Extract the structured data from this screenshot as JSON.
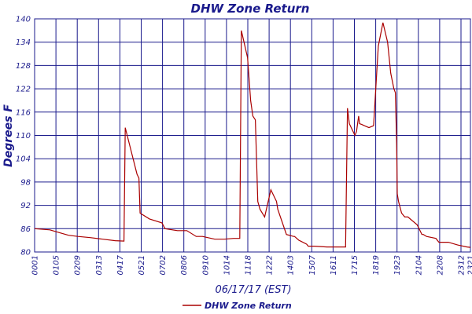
{
  "chart_data": {
    "type": "line",
    "title": "DHW Zone Return",
    "xlabel": "06/17/17 (EST)",
    "ylabel": "Degrees F",
    "ylim": [
      80,
      140
    ],
    "yticks": [
      80,
      86,
      92,
      98,
      104,
      110,
      116,
      122,
      128,
      134,
      140
    ],
    "xlim": [
      "00:01",
      "23:21"
    ],
    "xtick_labels": [
      "0001",
      "0105",
      "0209",
      "0313",
      "0417",
      "0521",
      "0702",
      "0806",
      "0910",
      "1014",
      "1118",
      "1222",
      "1403",
      "1507",
      "1611",
      "1715",
      "1819",
      "1923",
      "2104",
      "2208",
      "2312",
      "2321"
    ],
    "grid": true,
    "legend_position": "bottom",
    "colors": {
      "series": "#aa0000",
      "grid": "#1a1a8c",
      "text": "#1a1a8c"
    },
    "series": [
      {
        "name": "DHW Zone Return",
        "x": [
          "00:01",
          "00:50",
          "01:20",
          "01:50",
          "02:20",
          "03:00",
          "03:40",
          "04:20",
          "04:48",
          "04:52",
          "05:30",
          "05:36",
          "05:40",
          "06:10",
          "06:50",
          "07:00",
          "07:40",
          "07:50",
          "08:10",
          "08:40",
          "09:00",
          "09:40",
          "10:10",
          "10:40",
          "11:00",
          "11:05",
          "11:25",
          "11:35",
          "11:42",
          "11:50",
          "11:58",
          "12:05",
          "12:20",
          "12:40",
          "12:58",
          "13:02",
          "13:30",
          "13:53",
          "13:56",
          "14:10",
          "14:35",
          "14:40",
          "15:00",
          "15:40",
          "16:20",
          "16:40",
          "16:46",
          "16:52",
          "17:10",
          "17:15",
          "17:22",
          "17:25",
          "17:32",
          "17:40",
          "17:55",
          "18:10",
          "18:25",
          "18:40",
          "18:55",
          "19:05",
          "19:15",
          "19:20",
          "19:24",
          "19:26",
          "19:30",
          "19:40",
          "19:50",
          "20:00",
          "20:30",
          "20:45",
          "20:50",
          "21:00",
          "21:30",
          "21:40",
          "22:10",
          "22:40",
          "23:10",
          "23:21"
        ],
        "values": [
          86,
          85.7,
          85,
          84.3,
          84,
          83.7,
          83.3,
          82.9,
          82.8,
          112,
          100,
          99,
          90,
          88.5,
          87.5,
          86,
          85.5,
          85.5,
          85.5,
          84,
          84,
          83.3,
          83.3,
          83.5,
          83.5,
          137,
          130,
          119,
          115,
          114,
          93,
          91,
          89,
          96,
          93,
          91,
          84.5,
          84,
          84,
          83,
          82,
          81.5,
          81.5,
          81.3,
          81.3,
          81.3,
          117,
          113,
          110,
          111,
          115,
          113,
          112.8,
          112.5,
          112,
          112.5,
          133,
          139,
          134,
          126,
          122,
          121,
          108,
          95,
          93,
          90,
          89,
          89,
          87,
          84.5,
          84.5,
          84,
          83.5,
          82.5,
          82.5,
          81.8,
          81.3,
          81.2
        ]
      }
    ]
  }
}
